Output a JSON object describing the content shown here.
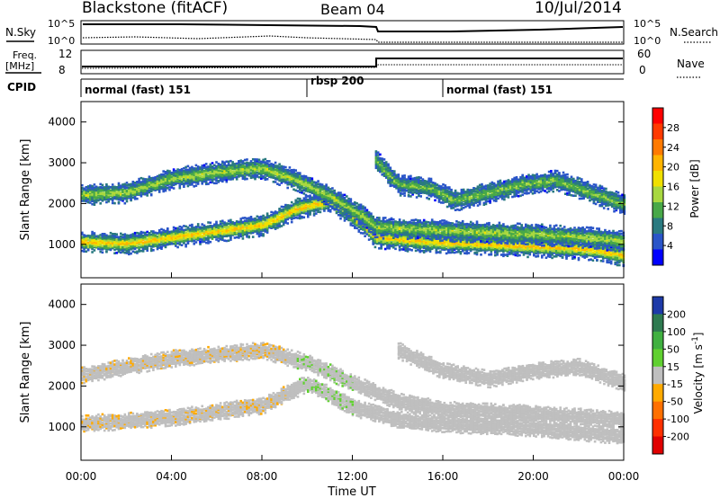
{
  "header": {
    "station": "Blackstone (fitACF)",
    "beam": "Beam 04",
    "date": "10/Jul/2014"
  },
  "top_panels": {
    "sky_label": "N.Sky",
    "search_label": "N.Search",
    "sky_ticks": [
      "10^5",
      "10^0"
    ],
    "freq_label_1": "Freq.",
    "freq_label_2": "[MHz]",
    "freq_ticks": [
      "12",
      "8"
    ],
    "nave_label": "Nave",
    "nave_ticks": [
      "60",
      "0"
    ],
    "cpid_label": "CPID",
    "cpid_segments": [
      {
        "label": "normal (fast) 151",
        "start_hour": 0
      },
      {
        "label": "rbsp 200",
        "start_hour": 10
      },
      {
        "label": "normal (fast) 151",
        "start_hour": 16
      }
    ]
  },
  "power_colorbar": {
    "label": "Power [dB]",
    "ticks": [
      "28",
      "24",
      "20",
      "16",
      "12",
      "8",
      "4"
    ],
    "colors": [
      "#ff0000",
      "#ff3a00",
      "#ff7a00",
      "#ffb400",
      "#f0e000",
      "#a8d840",
      "#48a848",
      "#2a7a80",
      "#2a55c8",
      "#0000ff"
    ]
  },
  "velocity_colorbar": {
    "label_main": "Velocity",
    "label_unit": "[m s",
    "label_sup": "-1",
    "label_end": "]",
    "ticks": [
      "200",
      "100",
      "50",
      "15",
      "-15",
      "-50",
      "-100",
      "-200"
    ],
    "colors": [
      "#1d3aa8",
      "#2e7a50",
      "#40b040",
      "#60d030",
      "#bfbfbf",
      "#ffaa00",
      "#ff7000",
      "#ff3000",
      "#e00000"
    ]
  },
  "x_axis": {
    "label": "Time UT",
    "ticks": [
      "00:00",
      "04:00",
      "08:00",
      "12:00",
      "16:00",
      "20:00",
      "00:00"
    ]
  },
  "chart_data": {
    "type": "heatmap",
    "title": "Blackstone (fitACF)",
    "subtitle": "Beam 04",
    "date": "10/Jul/2014",
    "x_range": [
      "00:00",
      "00:00"
    ],
    "x_hours": [
      0,
      24
    ],
    "ylabel": "Slant Range [km]",
    "ylim": [
      180,
      4500
    ],
    "y_ticks": [
      1000,
      2000,
      3000,
      4000
    ],
    "xlabel": "Time UT",
    "panels": [
      {
        "name": "Power",
        "colorbar_label": "Power [dB]",
        "colorbar_range": [
          0,
          30
        ],
        "bands": [
          {
            "hours": [
              0,
              2,
              4,
              6,
              8,
              9.5,
              11,
              12.5,
              13,
              15,
              17,
              19,
              21,
              22.5,
              24
            ],
            "range_km": [
              1100,
              1050,
              1200,
              1350,
              1500,
              1900,
              2100,
              1500,
              1200,
              1100,
              1050,
              1000,
              950,
              900,
              750
            ],
            "power_db": 20
          },
          {
            "hours": [
              0,
              2,
              4,
              6,
              8,
              9.5,
              11,
              12.5,
              13,
              15,
              17,
              19,
              21,
              22.5,
              24
            ],
            "range_km": [
              2250,
              2300,
              2650,
              2800,
              2900,
              2600,
              2200,
              1700,
              1450,
              1400,
              1350,
              1300,
              1250,
              1200,
              1100
            ],
            "power_db": 14
          },
          {
            "hours": [
              13,
              14,
              15.5,
              16.5,
              18,
              19.5,
              21,
              22.5,
              24
            ],
            "range_km": [
              3100,
              2500,
              2400,
              2100,
              2300,
              2500,
              2600,
              2300,
              2000
            ],
            "power_db": 12
          }
        ]
      },
      {
        "name": "Velocity",
        "colorbar_label": "Velocity [m s-1]",
        "colorbar_range": [
          -200,
          200
        ],
        "bands": [
          {
            "hours": [
              0,
              4,
              8,
              10,
              12,
              14,
              16,
              20,
              24
            ],
            "range_km": [
              1100,
              1250,
              1550,
              2100,
              1500,
              1200,
              1100,
              1000,
              800
            ],
            "velocity_ms": 0
          },
          {
            "hours": [
              0,
              4,
              8,
              10,
              12,
              14,
              16,
              20,
              24
            ],
            "range_km": [
              2300,
              2700,
              2900,
              2600,
              2100,
              1650,
              1450,
              1350,
              1200
            ],
            "velocity_ms": 0
          },
          {
            "hours": [
              14,
              16,
              18,
              20,
              22,
              24
            ],
            "range_km": [
              2900,
              2400,
              2200,
              2400,
              2500,
              2100
            ],
            "velocity_ms": 0
          }
        ]
      }
    ]
  }
}
